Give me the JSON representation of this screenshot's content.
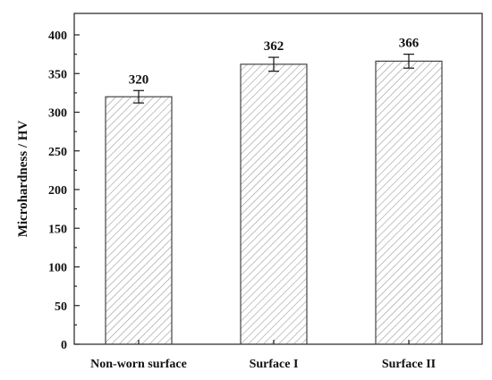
{
  "chart_data": {
    "type": "bar",
    "categories": [
      "Non-worn surface",
      "Surface I",
      "Surface II"
    ],
    "values": [
      320,
      362,
      366
    ],
    "errors": [
      8,
      9,
      9
    ],
    "data_labels": [
      "320",
      "362",
      "366"
    ],
    "ylabel": "Microhardness / HV",
    "xlabel": "",
    "ylim": [
      0,
      400
    ],
    "yticks": [
      0,
      50,
      100,
      150,
      200,
      250,
      300,
      350,
      400
    ],
    "ytick_labels": [
      "0",
      "50",
      "100",
      "150",
      "200",
      "250",
      "300",
      "350",
      "400"
    ],
    "grid": false,
    "legend": "none",
    "bar_fill": "hatched",
    "colors": {
      "bar_stroke": "#444444",
      "hatch": "#9a9a9a",
      "axis": "#222222",
      "text": "#111111"
    }
  }
}
